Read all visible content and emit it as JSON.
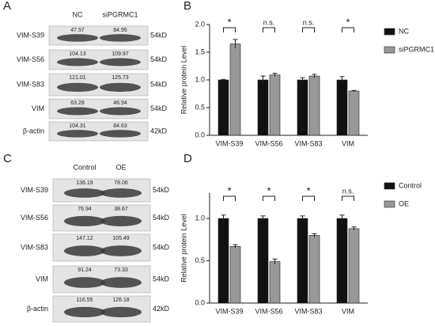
{
  "blots": [
    {
      "panel": "A",
      "columns": [
        "NC",
        "siPGRMC1"
      ],
      "rows": [
        {
          "label": "VIM-S39",
          "size": "54kD",
          "values": [
            47.57,
            84.95
          ]
        },
        {
          "label": "VIM-S56",
          "size": "54kD",
          "values": [
            104.13,
            109.97
          ]
        },
        {
          "label": "VIM-S83",
          "size": "54kD",
          "values": [
            121.01,
            125.73
          ]
        },
        {
          "label": "VIM",
          "size": "54kD",
          "values": [
            63.28,
            46.94
          ]
        },
        {
          "label": "β-actin",
          "size": "42kD",
          "values": [
            104.31,
            84.63
          ]
        }
      ]
    },
    {
      "panel": "C",
      "columns": [
        "Control",
        "OE"
      ],
      "rows": [
        {
          "label": "VIM-S39",
          "size": "54kD",
          "values": [
            136.19,
            78.06
          ]
        },
        {
          "label": "VIM-S56",
          "size": "54kD",
          "values": [
            76.94,
            38.67
          ]
        },
        {
          "label": "VIM-S83",
          "size": "54kD",
          "values": [
            147.12,
            105.49
          ]
        },
        {
          "label": "VIM",
          "size": "54kD",
          "values": [
            91.24,
            73.33
          ]
        },
        {
          "label": "β-actin",
          "size": "42kD",
          "values": [
            116.55,
            126.18
          ]
        }
      ]
    }
  ],
  "chart_data": [
    {
      "type": "bar",
      "panel": "B",
      "y_label": "Relative protein Level",
      "categories": [
        "VIM-S39",
        "VIM-S56",
        "VIM-S83",
        "VIM"
      ],
      "series": [
        {
          "name": "NC",
          "color": "#111111",
          "values": [
            1.0,
            1.0,
            1.0,
            1.0
          ],
          "errors": [
            0.01,
            0.07,
            0.04,
            0.06
          ]
        },
        {
          "name": "siPGRMC1",
          "color": "#999999",
          "values": [
            1.65,
            1.09,
            1.07,
            0.8
          ],
          "errors": [
            0.08,
            0.03,
            0.03,
            0.01
          ]
        }
      ],
      "significance": [
        "*",
        "n.s.",
        "n.s.",
        "*"
      ],
      "ylim": [
        0,
        2
      ],
      "yticks": [
        {
          "value": 0,
          "label": "0.0"
        },
        0.5,
        {
          "value": 1,
          "label": "1.0"
        },
        1.5,
        {
          "value": 2,
          "label": "2.0"
        }
      ],
      "legend": "right"
    },
    {
      "type": "bar",
      "panel": "D",
      "y_label": "Relative protein Level",
      "categories": [
        "VIM-S39",
        "VIM-S56",
        "VIM-S83",
        "VIM"
      ],
      "series": [
        {
          "name": "Control",
          "color": "#111111",
          "values": [
            1.0,
            1.0,
            1.0,
            1.0
          ],
          "errors": [
            0.04,
            0.03,
            0.03,
            0.04
          ]
        },
        {
          "name": "OE",
          "color": "#999999",
          "values": [
            0.67,
            0.49,
            0.8,
            0.88
          ],
          "errors": [
            0.02,
            0.03,
            0.02,
            0.02
          ]
        }
      ],
      "significance": [
        "*",
        "*",
        "*",
        "n.s."
      ],
      "ylim": [
        0,
        1.3
      ],
      "yticks": [
        {
          "value": 0,
          "label": "0.0"
        },
        0.5,
        {
          "value": 1,
          "label": "1.0"
        }
      ],
      "legend": "right"
    }
  ]
}
